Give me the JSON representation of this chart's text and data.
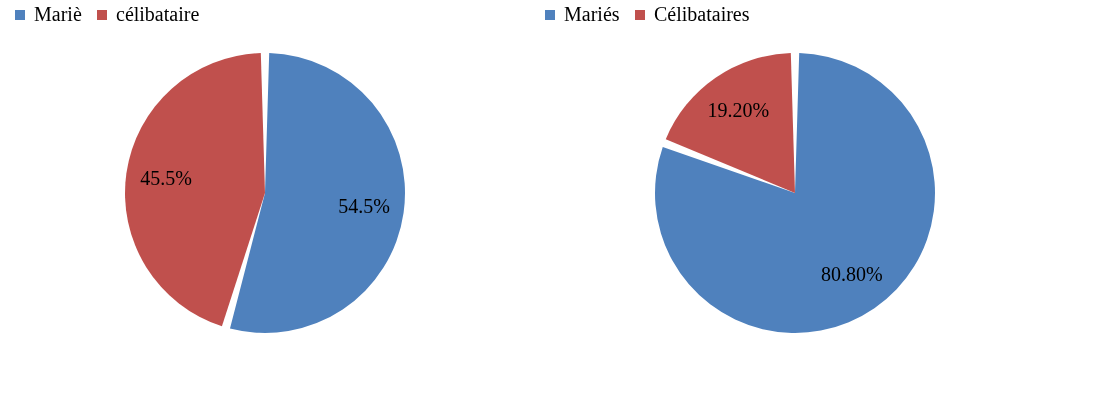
{
  "chart_data": [
    {
      "type": "pie",
      "categories": [
        "Mariè",
        "célibataire"
      ],
      "values": [
        54.5,
        45.5
      ],
      "colors": [
        "#4f81bd",
        "#c0504d"
      ],
      "value_labels": [
        "54.5%",
        "45.5%"
      ],
      "legend": "top"
    },
    {
      "type": "pie",
      "categories": [
        "Mariés",
        "Célibataires"
      ],
      "values": [
        80.8,
        19.2
      ],
      "colors": [
        "#4f81bd",
        "#c0504d"
      ],
      "value_labels": [
        "80.80%",
        "19.20%"
      ],
      "legend": "top"
    }
  ]
}
